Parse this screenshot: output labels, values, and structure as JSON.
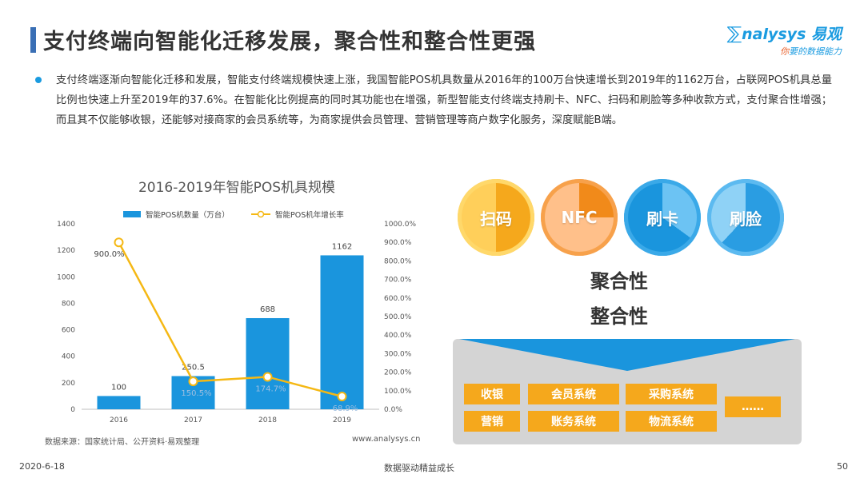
{
  "header": {
    "title": "支付终端向智能化迁移发展，聚合性和整合性更强",
    "logo_main": "nalysys 易观",
    "logo_sub_a": "你",
    "logo_sub_b": "要的数据能力"
  },
  "body": {
    "paragraph": "支付终端逐渐向智能化迁移和发展，智能支付终端规模快速上涨，我国智能POS机具数量从2016年的100万台快速增长到2019年的1162万台，占联网POS机具总量比例也快速上升至2019年的37.6%。在智能化比例提高的同时其功能也在增强，新型智能支付终端支持刷卡、NFC、扫码和刷脸等多种收款方式，支付聚合性增强；而且其不仅能够收银，还能够对接商家的会员系统等，为商家提供会员管理、营销管理等商户数字化服务，深度赋能B端。"
  },
  "chart_data": {
    "type": "bar",
    "title": "2016-2019年智能POS机具规模",
    "categories": [
      "2016",
      "2017",
      "2018",
      "2019"
    ],
    "series": [
      {
        "name": "智能POS机数量（万台）",
        "type": "bar",
        "axis": "left",
        "values": [
          100,
          250.5,
          688,
          1162
        ],
        "labels": [
          "100",
          "250.5",
          "688",
          "1162"
        ]
      },
      {
        "name": "智能POS机年增长率",
        "type": "line",
        "axis": "right",
        "values": [
          900.0,
          150.5,
          174.7,
          68.9
        ],
        "labels": [
          "900.0%",
          "150.5%",
          "174.7%",
          "68.9%"
        ]
      }
    ],
    "y_left": {
      "min": 0,
      "max": 1400,
      "ticks": [
        "0",
        "200",
        "400",
        "600",
        "800",
        "1000",
        "1200",
        "1400"
      ]
    },
    "y_right": {
      "min": 0,
      "max": 1000,
      "ticks": [
        "0.0%",
        "100.0%",
        "200.0%",
        "300.0%",
        "400.0%",
        "500.0%",
        "600.0%",
        "700.0%",
        "800.0%",
        "900.0%",
        "1000.0%"
      ]
    },
    "colors": {
      "bar": "#1a95dd",
      "line": "#f5b814"
    },
    "legend": "top"
  },
  "chart_footer": {
    "source": "数据来源：国家统计局、公开资料·易观整理",
    "site": "www.analysys.cn"
  },
  "features": {
    "methods": [
      "扫码",
      "NFC",
      "刷卡",
      "刷脸"
    ],
    "aggregation": "聚合性",
    "integration": "整合性",
    "services": [
      "收银",
      "会员系统",
      "采购系统",
      "营销",
      "账务系统",
      "物流系统",
      "……"
    ]
  },
  "footer": {
    "date": "2020-6-18",
    "slogan": "数据驱动精益成长",
    "page": "50"
  }
}
